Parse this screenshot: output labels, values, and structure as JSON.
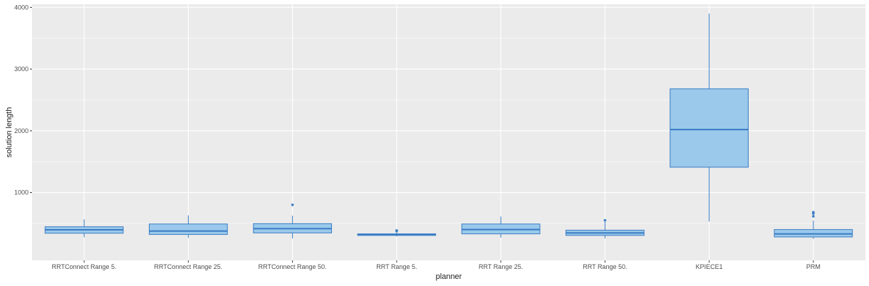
{
  "chart_data": {
    "type": "boxplot",
    "title": "",
    "xlabel": "planner",
    "ylabel": "solution length",
    "ylim": [
      -100,
      4050
    ],
    "yticks": [
      1000,
      2000,
      3000,
      4000
    ],
    "yminor": [
      500,
      1500,
      2500,
      3500
    ],
    "grid": true,
    "legend": "none",
    "colors": {
      "panel": "#ebebeb",
      "grid": "#ffffff",
      "box_fill": "#9ac9eb",
      "box_line": "#3a7cc4"
    },
    "categories": [
      "RRTConnect Range 5.",
      "RRTConnect Range 25.",
      "RRTConnect Range 50.",
      "RRT Range 5.",
      "RRT Range 25.",
      "RRT Range 50.",
      "KPIECE1",
      "PRM"
    ],
    "boxes": [
      {
        "lower_whisker": 275,
        "q1": 340,
        "median": 395,
        "q3": 445,
        "upper_whisker": 565,
        "outliers": []
      },
      {
        "lower_whisker": 265,
        "q1": 320,
        "median": 375,
        "q3": 490,
        "upper_whisker": 630,
        "outliers": []
      },
      {
        "lower_whisker": 255,
        "q1": 345,
        "median": 415,
        "q3": 495,
        "upper_whisker": 625,
        "outliers": [
          800
        ]
      },
      {
        "lower_whisker": 290,
        "q1": 305,
        "median": 315,
        "q3": 330,
        "upper_whisker": 355,
        "outliers": [
          375,
          385
        ]
      },
      {
        "lower_whisker": 270,
        "q1": 330,
        "median": 400,
        "q3": 490,
        "upper_whisker": 610,
        "outliers": []
      },
      {
        "lower_whisker": 255,
        "q1": 305,
        "median": 345,
        "q3": 390,
        "upper_whisker": 525,
        "outliers": [
          550
        ]
      },
      {
        "lower_whisker": 530,
        "q1": 1410,
        "median": 2020,
        "q3": 2680,
        "upper_whisker": 3900,
        "outliers": []
      },
      {
        "lower_whisker": 250,
        "q1": 280,
        "median": 330,
        "q3": 400,
        "upper_whisker": 545,
        "outliers": [
          615,
          660,
          680
        ]
      }
    ]
  }
}
